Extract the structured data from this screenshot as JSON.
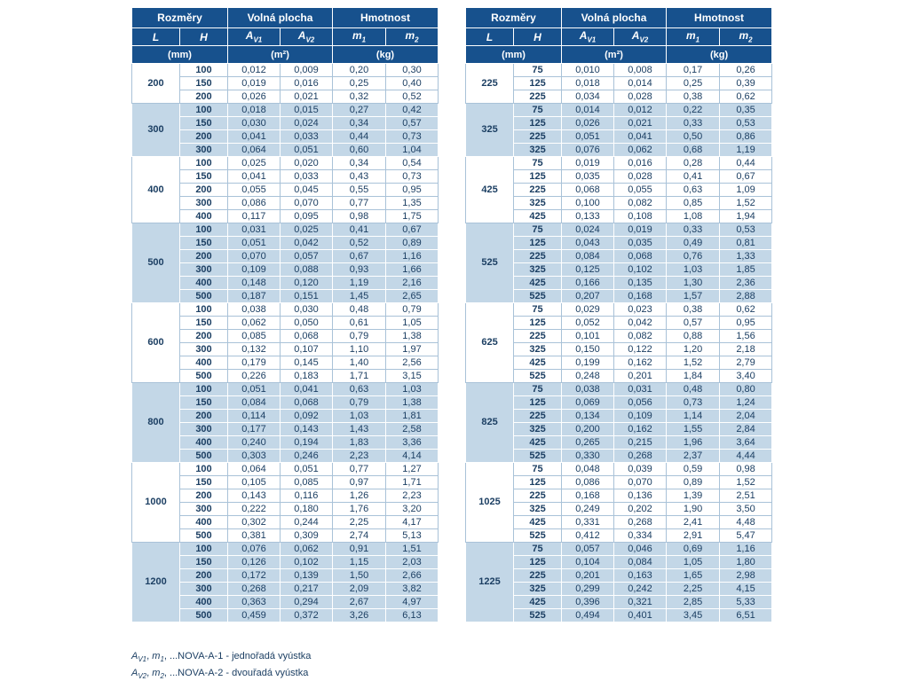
{
  "colors": {
    "header_bg": "#17518d",
    "group_alt_bg": "#c3d7e7",
    "text": "#1c3f63"
  },
  "header": {
    "rozmery": "Rozměry",
    "volna_plocha": "Volná plocha",
    "hmotnost": "Hmotnost",
    "l": "L",
    "h": "H",
    "av1": {
      "base": "A",
      "sub": "V1"
    },
    "av2": {
      "base": "A",
      "sub": "V2"
    },
    "m1": {
      "base": "m",
      "sub": "1"
    },
    "m2": {
      "base": "m",
      "sub": "2"
    },
    "unit_mm": "(mm)",
    "unit_m2": "(m²)",
    "unit_kg": "(kg)"
  },
  "tables": {
    "left": {
      "groups": [
        {
          "L": "200",
          "rows": [
            [
              "100",
              "0,012",
              "0,009",
              "0,20",
              "0,30"
            ],
            [
              "150",
              "0,019",
              "0,016",
              "0,25",
              "0,40"
            ],
            [
              "200",
              "0,026",
              "0,021",
              "0,32",
              "0,52"
            ]
          ]
        },
        {
          "L": "300",
          "rows": [
            [
              "100",
              "0,018",
              "0,015",
              "0,27",
              "0,42"
            ],
            [
              "150",
              "0,030",
              "0,024",
              "0,34",
              "0,57"
            ],
            [
              "200",
              "0,041",
              "0,033",
              "0,44",
              "0,73"
            ],
            [
              "300",
              "0,064",
              "0,051",
              "0,60",
              "1,04"
            ]
          ]
        },
        {
          "L": "400",
          "rows": [
            [
              "100",
              "0,025",
              "0,020",
              "0,34",
              "0,54"
            ],
            [
              "150",
              "0,041",
              "0,033",
              "0,43",
              "0,73"
            ],
            [
              "200",
              "0,055",
              "0,045",
              "0,55",
              "0,95"
            ],
            [
              "300",
              "0,086",
              "0,070",
              "0,77",
              "1,35"
            ],
            [
              "400",
              "0,117",
              "0,095",
              "0,98",
              "1,75"
            ]
          ]
        },
        {
          "L": "500",
          "rows": [
            [
              "100",
              "0,031",
              "0,025",
              "0,41",
              "0,67"
            ],
            [
              "150",
              "0,051",
              "0,042",
              "0,52",
              "0,89"
            ],
            [
              "200",
              "0,070",
              "0,057",
              "0,67",
              "1,16"
            ],
            [
              "300",
              "0,109",
              "0,088",
              "0,93",
              "1,66"
            ],
            [
              "400",
              "0,148",
              "0,120",
              "1,19",
              "2,16"
            ],
            [
              "500",
              "0,187",
              "0,151",
              "1,45",
              "2,65"
            ]
          ]
        },
        {
          "L": "600",
          "rows": [
            [
              "100",
              "0,038",
              "0,030",
              "0,48",
              "0,79"
            ],
            [
              "150",
              "0,062",
              "0,050",
              "0,61",
              "1,05"
            ],
            [
              "200",
              "0,085",
              "0,068",
              "0,79",
              "1,38"
            ],
            [
              "300",
              "0,132",
              "0,107",
              "1,10",
              "1,97"
            ],
            [
              "400",
              "0,179",
              "0,145",
              "1,40",
              "2,56"
            ],
            [
              "500",
              "0,226",
              "0,183",
              "1,71",
              "3,15"
            ]
          ]
        },
        {
          "L": "800",
          "rows": [
            [
              "100",
              "0,051",
              "0,041",
              "0,63",
              "1,03"
            ],
            [
              "150",
              "0,084",
              "0,068",
              "0,79",
              "1,38"
            ],
            [
              "200",
              "0,114",
              "0,092",
              "1,03",
              "1,81"
            ],
            [
              "300",
              "0,177",
              "0,143",
              "1,43",
              "2,58"
            ],
            [
              "400",
              "0,240",
              "0,194",
              "1,83",
              "3,36"
            ],
            [
              "500",
              "0,303",
              "0,246",
              "2,23",
              "4,14"
            ]
          ]
        },
        {
          "L": "1000",
          "rows": [
            [
              "100",
              "0,064",
              "0,051",
              "0,77",
              "1,27"
            ],
            [
              "150",
              "0,105",
              "0,085",
              "0,97",
              "1,71"
            ],
            [
              "200",
              "0,143",
              "0,116",
              "1,26",
              "2,23"
            ],
            [
              "300",
              "0,222",
              "0,180",
              "1,76",
              "3,20"
            ],
            [
              "400",
              "0,302",
              "0,244",
              "2,25",
              "4,17"
            ],
            [
              "500",
              "0,381",
              "0,309",
              "2,74",
              "5,13"
            ]
          ]
        },
        {
          "L": "1200",
          "rows": [
            [
              "100",
              "0,076",
              "0,062",
              "0,91",
              "1,51"
            ],
            [
              "150",
              "0,126",
              "0,102",
              "1,15",
              "2,03"
            ],
            [
              "200",
              "0,172",
              "0,139",
              "1,50",
              "2,66"
            ],
            [
              "300",
              "0,268",
              "0,217",
              "2,09",
              "3,82"
            ],
            [
              "400",
              "0,363",
              "0,294",
              "2,67",
              "4,97"
            ],
            [
              "500",
              "0,459",
              "0,372",
              "3,26",
              "6,13"
            ]
          ]
        }
      ]
    },
    "right": {
      "groups": [
        {
          "L": "225",
          "rows": [
            [
              "75",
              "0,010",
              "0,008",
              "0,17",
              "0,26"
            ],
            [
              "125",
              "0,018",
              "0,014",
              "0,25",
              "0,39"
            ],
            [
              "225",
              "0,034",
              "0,028",
              "0,38",
              "0,62"
            ]
          ]
        },
        {
          "L": "325",
          "rows": [
            [
              "75",
              "0,014",
              "0,012",
              "0,22",
              "0,35"
            ],
            [
              "125",
              "0,026",
              "0,021",
              "0,33",
              "0,53"
            ],
            [
              "225",
              "0,051",
              "0,041",
              "0,50",
              "0,86"
            ],
            [
              "325",
              "0,076",
              "0,062",
              "0,68",
              "1,19"
            ]
          ]
        },
        {
          "L": "425",
          "rows": [
            [
              "75",
              "0,019",
              "0,016",
              "0,28",
              "0,44"
            ],
            [
              "125",
              "0,035",
              "0,028",
              "0,41",
              "0,67"
            ],
            [
              "225",
              "0,068",
              "0,055",
              "0,63",
              "1,09"
            ],
            [
              "325",
              "0,100",
              "0,082",
              "0,85",
              "1,52"
            ],
            [
              "425",
              "0,133",
              "0,108",
              "1,08",
              "1,94"
            ]
          ]
        },
        {
          "L": "525",
          "rows": [
            [
              "75",
              "0,024",
              "0,019",
              "0,33",
              "0,53"
            ],
            [
              "125",
              "0,043",
              "0,035",
              "0,49",
              "0,81"
            ],
            [
              "225",
              "0,084",
              "0,068",
              "0,76",
              "1,33"
            ],
            [
              "325",
              "0,125",
              "0,102",
              "1,03",
              "1,85"
            ],
            [
              "425",
              "0,166",
              "0,135",
              "1,30",
              "2,36"
            ],
            [
              "525",
              "0,207",
              "0,168",
              "1,57",
              "2,88"
            ]
          ]
        },
        {
          "L": "625",
          "rows": [
            [
              "75",
              "0,029",
              "0,023",
              "0,38",
              "0,62"
            ],
            [
              "125",
              "0,052",
              "0,042",
              "0,57",
              "0,95"
            ],
            [
              "225",
              "0,101",
              "0,082",
              "0,88",
              "1,56"
            ],
            [
              "325",
              "0,150",
              "0,122",
              "1,20",
              "2,18"
            ],
            [
              "425",
              "0,199",
              "0,162",
              "1,52",
              "2,79"
            ],
            [
              "525",
              "0,248",
              "0,201",
              "1,84",
              "3,40"
            ]
          ]
        },
        {
          "L": "825",
          "rows": [
            [
              "75",
              "0,038",
              "0,031",
              "0,48",
              "0,80"
            ],
            [
              "125",
              "0,069",
              "0,056",
              "0,73",
              "1,24"
            ],
            [
              "225",
              "0,134",
              "0,109",
              "1,14",
              "2,04"
            ],
            [
              "325",
              "0,200",
              "0,162",
              "1,55",
              "2,84"
            ],
            [
              "425",
              "0,265",
              "0,215",
              "1,96",
              "3,64"
            ],
            [
              "525",
              "0,330",
              "0,268",
              "2,37",
              "4,44"
            ]
          ]
        },
        {
          "L": "1025",
          "rows": [
            [
              "75",
              "0,048",
              "0,039",
              "0,59",
              "0,98"
            ],
            [
              "125",
              "0,086",
              "0,070",
              "0,89",
              "1,52"
            ],
            [
              "225",
              "0,168",
              "0,136",
              "1,39",
              "2,51"
            ],
            [
              "325",
              "0,249",
              "0,202",
              "1,90",
              "3,50"
            ],
            [
              "425",
              "0,331",
              "0,268",
              "2,41",
              "4,48"
            ],
            [
              "525",
              "0,412",
              "0,334",
              "2,91",
              "5,47"
            ]
          ]
        },
        {
          "L": "1225",
          "rows": [
            [
              "75",
              "0,057",
              "0,046",
              "0,69",
              "1,16"
            ],
            [
              "125",
              "0,104",
              "0,084",
              "1,05",
              "1,80"
            ],
            [
              "225",
              "0,201",
              "0,163",
              "1,65",
              "2,98"
            ],
            [
              "325",
              "0,299",
              "0,242",
              "2,25",
              "4,15"
            ],
            [
              "425",
              "0,396",
              "0,321",
              "2,85",
              "5,33"
            ],
            [
              "525",
              "0,494",
              "0,401",
              "3,45",
              "6,51"
            ]
          ]
        }
      ]
    }
  },
  "footnotes": [
    {
      "a_base": "A",
      "a_sub": "V1",
      "sep1": ", ",
      "m_base": "m",
      "m_sub": "1",
      "sep2": ", ",
      "text": "...NOVA-A-1 - jednořadá vyústka"
    },
    {
      "a_base": "A",
      "a_sub": "V2",
      "sep1": ", ",
      "m_base": "m",
      "m_sub": "2",
      "sep2": ", ",
      "text": "...NOVA-A-2 - dvouřadá vyústka"
    }
  ]
}
